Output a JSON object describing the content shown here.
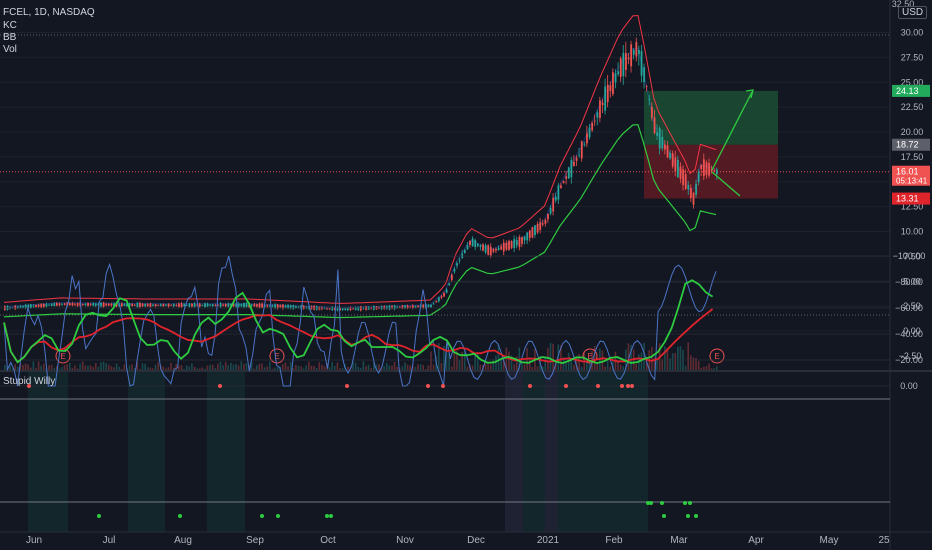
{
  "header": {
    "symbol_line": "FCEL, 1D, NASDAQ",
    "indicators": [
      "KC",
      "BB",
      "Vol"
    ],
    "currency": "USD"
  },
  "price_axis": {
    "ticks": [
      "0.00",
      "2.50",
      "5.00",
      "7.50",
      "10.00",
      "12.50",
      "15.00",
      "17.50",
      "20.00",
      "22.50",
      "25.00",
      "27.50",
      "30.00"
    ],
    "neg_tick": "−2.50",
    "top_tick": "32.50"
  },
  "osc_axis": {
    "ticks": [
      "0.00",
      "−20.00",
      "−40.00",
      "−60.00",
      "−80.00",
      "−100.00"
    ]
  },
  "price_tags": [
    {
      "label": "24.13",
      "value": 24.13,
      "color": "#22ab5b"
    },
    {
      "label": "18.72",
      "value": 18.72,
      "color": "#5d606b"
    },
    {
      "label": "16.01",
      "sub": "05:13:41",
      "value": 16.01,
      "color": "#f05151"
    },
    {
      "label": "13.31",
      "value": 13.31,
      "color": "#e0242c"
    }
  ],
  "time_axis": [
    "Jun",
    "Jul",
    "Aug",
    "Sep",
    "Oct",
    "Nov",
    "Dec",
    "2021",
    "Feb",
    "Mar",
    "Apr",
    "May",
    "25"
  ],
  "earnings_marker": "E",
  "oscillator_title": "Stupid Willy",
  "colors": {
    "bg": "#131722",
    "up": "#26a69a",
    "down": "#ef5350",
    "kc": "#f23645",
    "bb": "#2ecc40",
    "osc": "#4a74c7",
    "osc_ma_red": "#e0242c",
    "osc_ma_green": "#2ecc40"
  },
  "chart_data": {
    "type": "line",
    "title": "FCEL, 1D, NASDAQ",
    "ylim": [
      -2.5,
      32.5
    ],
    "x": [
      "Jun",
      "Jul",
      "Aug",
      "Sep",
      "Oct",
      "Nov",
      "Dec",
      "2021",
      "Feb",
      "Mar"
    ],
    "series": [
      {
        "name": "price_close",
        "values": [
          2.4,
          2.6,
          2.5,
          2.6,
          2.3,
          2.4,
          9.5,
          12.5,
          24,
          14
        ]
      },
      {
        "name": "KC",
        "values": [
          2.7,
          2.8,
          2.7,
          2.8,
          2.6,
          2.7,
          11.5,
          16,
          29,
          22
        ]
      },
      {
        "name": "BB",
        "values": [
          2,
          2.1,
          2.1,
          2.2,
          1.8,
          1.9,
          4,
          7,
          15,
          11
        ]
      }
    ],
    "trade_box": {
      "target": 24.13,
      "entry": 18.72,
      "stop": 13.31,
      "last": 16.01
    },
    "oscillator": {
      "name": "Stupid Willy",
      "ylim": [
        -100,
        0
      ],
      "values": [
        -20,
        -35,
        -55,
        -45,
        -70,
        -50,
        -10,
        -15,
        -5,
        -80
      ]
    }
  }
}
